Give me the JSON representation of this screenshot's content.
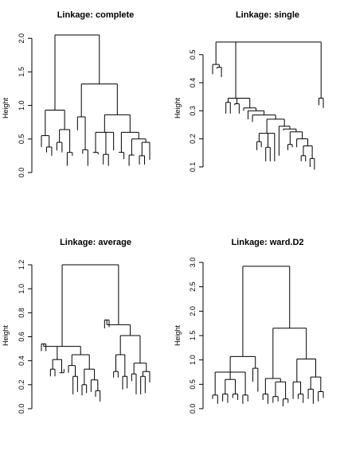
{
  "chart_data": [
    {
      "type": "dendrogram",
      "title": "Linkage: complete",
      "ylabel": "Height",
      "ylim": [
        0,
        2.05
      ],
      "yticks": [
        "0.0",
        "0.5",
        "1.0",
        "1.5",
        "2.0"
      ],
      "n_leaves": 30,
      "tree": [
        [
          [
            [
              0.38
            ],
            [
              [
                0.42
              ],
              [
                0.25
              ]
            ]
          ],
          [
            0.64,
            [
              0.32
            ],
            [
              0.27
            ]
          ]
        ],
        [
          [
            0.82
          ],
          [
            [
              0.34
            ],
            [
              0.28
            ]
          ],
          [
            1.08,
            [
              0.6,
              [
                0.3
              ],
              [
                0.27
              ]
            ],
            [
              0.33
            ]
          ],
          [
            0.86,
            [
              0.58,
              [
                0.26
              ],
              [
                0.33
              ]
            ],
            [
              0.62,
              [
                0.3
              ],
              [
                0.45,
                [
                  0.25
                ],
                [
                  0.19
                ]
              ]
            ]
          ]
        ]
      ]
    },
    {
      "type": "dendrogram",
      "title": "Linkage: single",
      "ylabel": "Height",
      "ylim": [
        0.08,
        0.57
      ],
      "yticks": [
        "0.1",
        "0.2",
        "0.3",
        "0.4",
        "0.5"
      ],
      "n_leaves": 30
    },
    {
      "type": "dendrogram",
      "title": "Linkage: average",
      "ylabel": "Height",
      "ylim": [
        0,
        1.22
      ],
      "yticks": [
        "0.0",
        "0.2",
        "0.4",
        "0.6",
        "0.8",
        "1.0",
        "1.2"
      ],
      "n_leaves": 30
    },
    {
      "type": "dendrogram",
      "title": "Linkage: ward.D2",
      "ylabel": "Height",
      "ylim": [
        0,
        3.0
      ],
      "yticks": [
        "0.0",
        "0.5",
        "1.0",
        "1.5",
        "2.0",
        "2.5",
        "3.0"
      ],
      "n_leaves": 30
    }
  ]
}
